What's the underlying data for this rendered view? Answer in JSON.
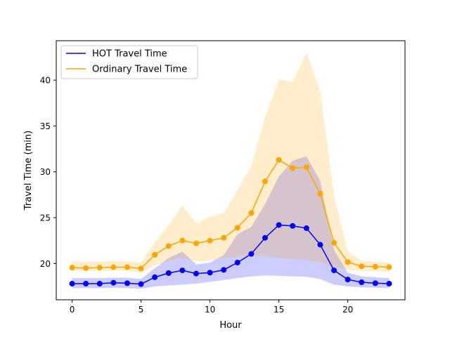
{
  "chart_data": {
    "type": "line",
    "title": "",
    "xlabel": "Hour",
    "ylabel": "Travel Time (min)",
    "xlim": [
      -1.15,
      24.15
    ],
    "ylim": [
      16.04,
      44.3
    ],
    "x_ticks": [
      0,
      5,
      10,
      15,
      20
    ],
    "y_ticks": [
      20,
      25,
      30,
      35,
      40
    ],
    "x_tick_labels": [
      "0",
      "5",
      "10",
      "15",
      "20"
    ],
    "y_tick_labels": [
      "20",
      "25",
      "30",
      "35",
      "40"
    ],
    "legend_position": "upper-left",
    "grid": false,
    "x": [
      0,
      1,
      2,
      3,
      4,
      5,
      6,
      7,
      8,
      9,
      10,
      11,
      12,
      13,
      14,
      15,
      16,
      17,
      18,
      19,
      20,
      21,
      22,
      23
    ],
    "series": [
      {
        "name": "HOT Travel Time",
        "color": "#0000ff",
        "band_color": "#0000ff",
        "values": [
          17.8,
          17.8,
          17.8,
          17.9,
          17.85,
          17.75,
          18.5,
          18.95,
          19.25,
          18.9,
          19.0,
          19.3,
          20.1,
          21.05,
          22.8,
          24.2,
          24.1,
          23.85,
          22.05,
          19.25,
          18.25,
          17.95,
          17.85,
          17.8
        ],
        "lower": [
          17.3,
          17.3,
          17.3,
          17.35,
          17.3,
          17.25,
          17.5,
          17.6,
          17.7,
          17.8,
          18.0,
          18.2,
          18.4,
          18.6,
          18.7,
          18.65,
          18.6,
          18.55,
          18.3,
          17.7,
          17.5,
          17.4,
          17.35,
          17.3
        ],
        "upper": [
          18.4,
          18.4,
          18.4,
          18.45,
          18.45,
          18.3,
          19.5,
          20.6,
          21.3,
          19.9,
          20.1,
          20.9,
          23.2,
          24.0,
          26.5,
          29.5,
          31.2,
          31.7,
          29.0,
          21.5,
          19.0,
          18.6,
          18.5,
          18.4
        ]
      },
      {
        "name": "Ordinary Travel Time",
        "color": "#ffa500",
        "band_color": "#ffa500",
        "values": [
          19.55,
          19.5,
          19.55,
          19.6,
          19.6,
          19.45,
          20.95,
          21.9,
          22.5,
          22.2,
          22.5,
          22.8,
          23.9,
          25.5,
          28.95,
          31.3,
          30.4,
          30.5,
          27.6,
          22.25,
          20.15,
          19.7,
          19.65,
          19.6
        ],
        "lower": [
          19.2,
          19.2,
          19.2,
          19.2,
          19.2,
          19.0,
          19.8,
          20.3,
          20.6,
          20.2,
          20.3,
          20.6,
          20.75,
          20.8,
          20.8,
          20.6,
          20.5,
          20.4,
          20.1,
          19.6,
          19.3,
          19.2,
          19.15,
          19.1
        ],
        "upper": [
          20.2,
          20.2,
          20.2,
          20.25,
          20.25,
          20.1,
          22.3,
          24.2,
          26.3,
          24.4,
          25.1,
          25.5,
          28.0,
          30.6,
          36.0,
          40.1,
          39.8,
          43.0,
          38.8,
          27.5,
          21.3,
          20.3,
          20.2,
          20.1
        ]
      }
    ]
  }
}
